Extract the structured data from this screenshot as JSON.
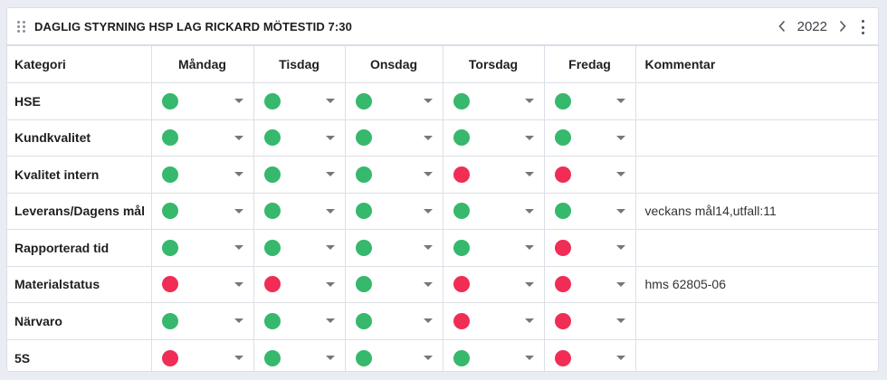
{
  "header": {
    "title": "DAGLIG STYRNING HSP LAG RICKARD MÖTESTID 7:30",
    "year": "2022",
    "icons": {
      "drag": "drag-handle-icon",
      "prev": "chevron-left-icon",
      "next": "chevron-right-icon",
      "menu": "more-vertical-icon"
    }
  },
  "colors": {
    "green": "#36b86d",
    "red": "#f02d55"
  },
  "columns": [
    "Kategori",
    "Måndag",
    "Tisdag",
    "Onsdag",
    "Torsdag",
    "Fredag",
    "Kommentar"
  ],
  "rows": [
    {
      "category": "HSE",
      "statuses": [
        "green",
        "green",
        "green",
        "green",
        "green"
      ],
      "comment": ""
    },
    {
      "category": "Kundkvalitet",
      "statuses": [
        "green",
        "green",
        "green",
        "green",
        "green"
      ],
      "comment": ""
    },
    {
      "category": "Kvalitet intern",
      "statuses": [
        "green",
        "green",
        "green",
        "red",
        "red"
      ],
      "comment": ""
    },
    {
      "category": "Leverans/Dagens mål",
      "statuses": [
        "green",
        "green",
        "green",
        "green",
        "green"
      ],
      "comment": "veckans mål14,utfall:11"
    },
    {
      "category": "Rapporterad tid",
      "statuses": [
        "green",
        "green",
        "green",
        "green",
        "red"
      ],
      "comment": ""
    },
    {
      "category": "Materialstatus",
      "statuses": [
        "red",
        "red",
        "green",
        "red",
        "red"
      ],
      "comment": "hms 62805-06"
    },
    {
      "category": "Närvaro",
      "statuses": [
        "green",
        "green",
        "green",
        "red",
        "red"
      ],
      "comment": ""
    },
    {
      "category": "5S",
      "statuses": [
        "red",
        "green",
        "green",
        "green",
        "red"
      ],
      "comment": ""
    }
  ]
}
